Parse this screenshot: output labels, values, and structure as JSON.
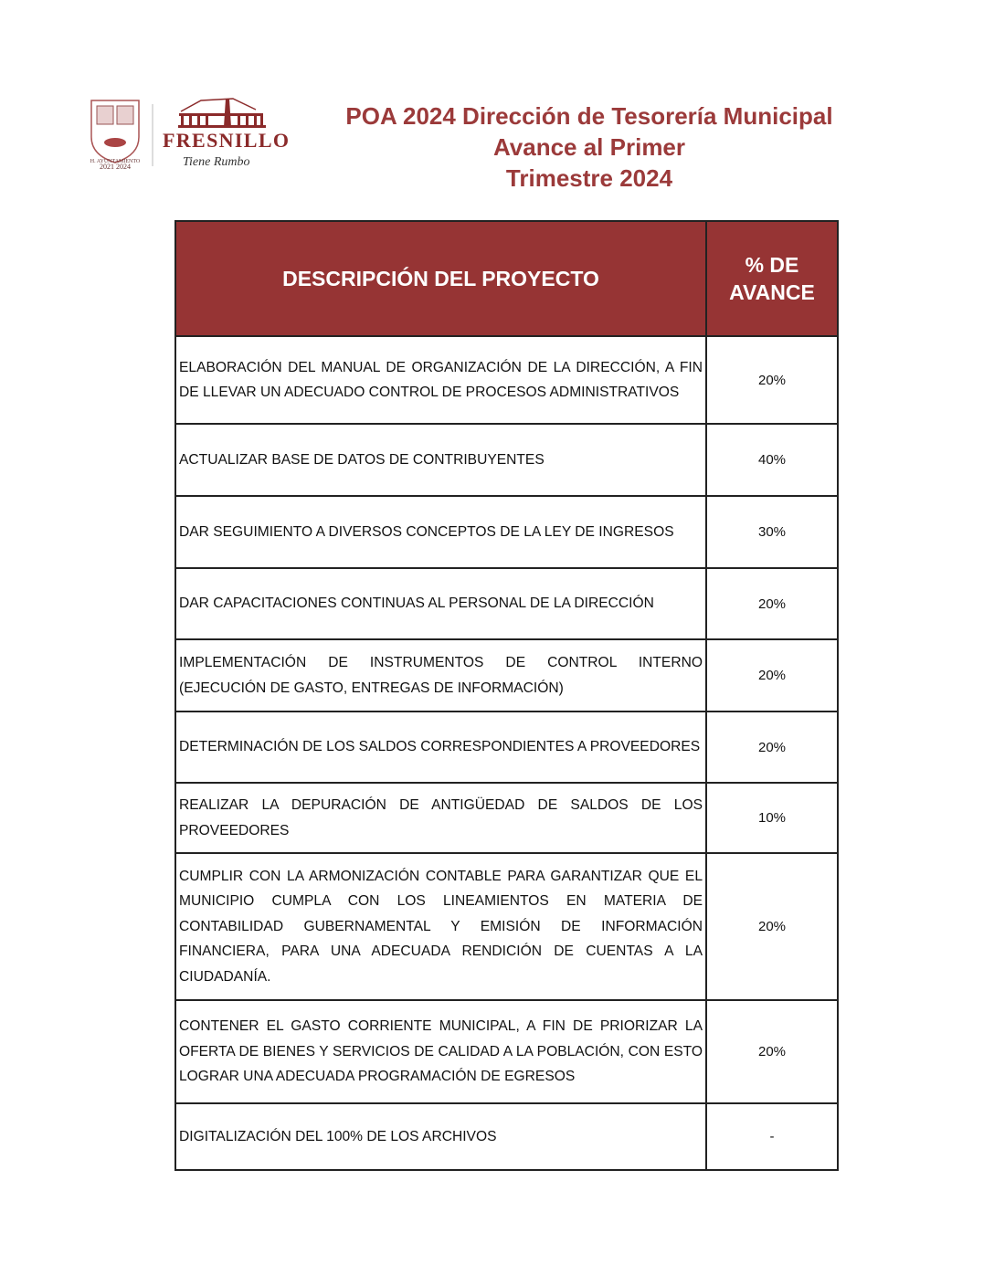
{
  "logo": {
    "city_name": "FRESNILLO",
    "slogan": "Tiene Rumbo",
    "seal_text": "H. AYUNTAMIENTO 2021-2024"
  },
  "title": {
    "line1": "POA 2024  Dirección de Tesorería Municipal",
    "line2": "Avance al Primer",
    "line3": "Trimestre 2024"
  },
  "colors": {
    "header_bg": "#963434",
    "title": "#9b3a3a"
  },
  "table": {
    "headers": {
      "description": "DESCRIPCIÓN DEL PROYECTO",
      "progress_line1": "% DE",
      "progress_line2": "AVANCE"
    },
    "rows": [
      {
        "description": "ELABORACIÓN DEL MANUAL DE ORGANIZACIÓN DE LA DIRECCIÓN, A FIN DE LLEVAR UN ADECUADO CONTROL DE PROCESOS ADMINISTRATIVOS",
        "progress": "20%"
      },
      {
        "description": "ACTUALIZAR BASE DE DATOS DE CONTRIBUYENTES",
        "progress": "40%"
      },
      {
        "description": "DAR SEGUIMIENTO A DIVERSOS CONCEPTOS DE LA LEY DE INGRESOS",
        "progress": "30%"
      },
      {
        "description": "DAR CAPACITACIONES CONTINUAS AL PERSONAL DE LA DIRECCIÓN",
        "progress": "20%"
      },
      {
        "description": "IMPLEMENTACIÓN DE INSTRUMENTOS DE CONTROL INTERNO (EJECUCIÓN DE GASTO, ENTREGAS DE INFORMACIÓN)",
        "progress": "20%"
      },
      {
        "description": "DETERMINACIÓN DE LOS SALDOS CORRESPONDIENTES A PROVEEDORES",
        "progress": "20%"
      },
      {
        "description": "REALIZAR LA DEPURACIÓN DE ANTIGÜEDAD DE SALDOS DE LOS PROVEEDORES",
        "progress": "10%"
      },
      {
        "description": "CUMPLIR CON LA ARMONIZACIÓN CONTABLE PARA GARANTIZAR QUE EL MUNICIPIO CUMPLA CON LOS LINEAMIENTOS EN MATERIA DE CONTABILIDAD GUBERNAMENTAL Y EMISIÓN DE INFORMACIÓN FINANCIERA, PARA UNA ADECUADA RENDICIÓN DE CUENTAS A LA CIUDADANÍA.",
        "progress": "20%"
      },
      {
        "description": "CONTENER EL GASTO CORRIENTE MUNICIPAL, A FIN DE PRIORIZAR LA OFERTA DE BIENES Y SERVICIOS DE CALIDAD A LA POBLACIÓN, CON ESTO LOGRAR UNA ADECUADA PROGRAMACIÓN DE EGRESOS",
        "progress": "20%"
      },
      {
        "description": "DIGITALIZACIÓN DEL 100% DE LOS ARCHIVOS",
        "progress": "-"
      }
    ]
  }
}
